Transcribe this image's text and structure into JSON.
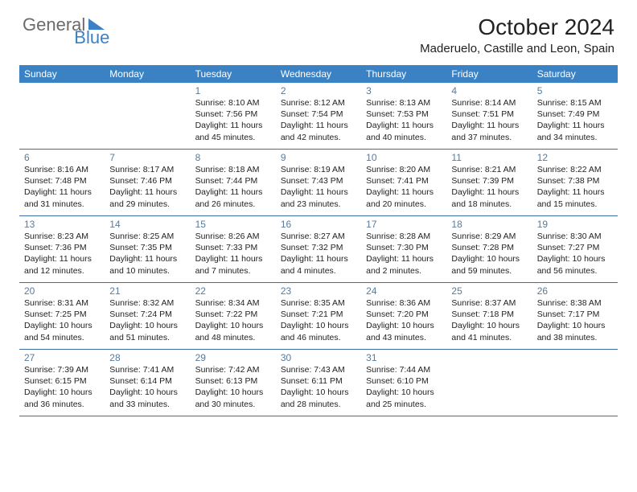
{
  "logo": {
    "general": "General",
    "blue": "Blue"
  },
  "title": "October 2024",
  "location": "Maderuelo, Castille and Leon, Spain",
  "colors": {
    "header_bg": "#3b82c4",
    "daynum": "#5a7a9a",
    "row_border": "#3b6ea0"
  },
  "daysOfWeek": [
    "Sunday",
    "Monday",
    "Tuesday",
    "Wednesday",
    "Thursday",
    "Friday",
    "Saturday"
  ],
  "weeks": [
    [
      null,
      null,
      {
        "n": "1",
        "sr": "8:10 AM",
        "ss": "7:56 PM",
        "dl": "11 hours and 45 minutes."
      },
      {
        "n": "2",
        "sr": "8:12 AM",
        "ss": "7:54 PM",
        "dl": "11 hours and 42 minutes."
      },
      {
        "n": "3",
        "sr": "8:13 AM",
        "ss": "7:53 PM",
        "dl": "11 hours and 40 minutes."
      },
      {
        "n": "4",
        "sr": "8:14 AM",
        "ss": "7:51 PM",
        "dl": "11 hours and 37 minutes."
      },
      {
        "n": "5",
        "sr": "8:15 AM",
        "ss": "7:49 PM",
        "dl": "11 hours and 34 minutes."
      }
    ],
    [
      {
        "n": "6",
        "sr": "8:16 AM",
        "ss": "7:48 PM",
        "dl": "11 hours and 31 minutes."
      },
      {
        "n": "7",
        "sr": "8:17 AM",
        "ss": "7:46 PM",
        "dl": "11 hours and 29 minutes."
      },
      {
        "n": "8",
        "sr": "8:18 AM",
        "ss": "7:44 PM",
        "dl": "11 hours and 26 minutes."
      },
      {
        "n": "9",
        "sr": "8:19 AM",
        "ss": "7:43 PM",
        "dl": "11 hours and 23 minutes."
      },
      {
        "n": "10",
        "sr": "8:20 AM",
        "ss": "7:41 PM",
        "dl": "11 hours and 20 minutes."
      },
      {
        "n": "11",
        "sr": "8:21 AM",
        "ss": "7:39 PM",
        "dl": "11 hours and 18 minutes."
      },
      {
        "n": "12",
        "sr": "8:22 AM",
        "ss": "7:38 PM",
        "dl": "11 hours and 15 minutes."
      }
    ],
    [
      {
        "n": "13",
        "sr": "8:23 AM",
        "ss": "7:36 PM",
        "dl": "11 hours and 12 minutes."
      },
      {
        "n": "14",
        "sr": "8:25 AM",
        "ss": "7:35 PM",
        "dl": "11 hours and 10 minutes."
      },
      {
        "n": "15",
        "sr": "8:26 AM",
        "ss": "7:33 PM",
        "dl": "11 hours and 7 minutes."
      },
      {
        "n": "16",
        "sr": "8:27 AM",
        "ss": "7:32 PM",
        "dl": "11 hours and 4 minutes."
      },
      {
        "n": "17",
        "sr": "8:28 AM",
        "ss": "7:30 PM",
        "dl": "11 hours and 2 minutes."
      },
      {
        "n": "18",
        "sr": "8:29 AM",
        "ss": "7:28 PM",
        "dl": "10 hours and 59 minutes."
      },
      {
        "n": "19",
        "sr": "8:30 AM",
        "ss": "7:27 PM",
        "dl": "10 hours and 56 minutes."
      }
    ],
    [
      {
        "n": "20",
        "sr": "8:31 AM",
        "ss": "7:25 PM",
        "dl": "10 hours and 54 minutes."
      },
      {
        "n": "21",
        "sr": "8:32 AM",
        "ss": "7:24 PM",
        "dl": "10 hours and 51 minutes."
      },
      {
        "n": "22",
        "sr": "8:34 AM",
        "ss": "7:22 PM",
        "dl": "10 hours and 48 minutes."
      },
      {
        "n": "23",
        "sr": "8:35 AM",
        "ss": "7:21 PM",
        "dl": "10 hours and 46 minutes."
      },
      {
        "n": "24",
        "sr": "8:36 AM",
        "ss": "7:20 PM",
        "dl": "10 hours and 43 minutes."
      },
      {
        "n": "25",
        "sr": "8:37 AM",
        "ss": "7:18 PM",
        "dl": "10 hours and 41 minutes."
      },
      {
        "n": "26",
        "sr": "8:38 AM",
        "ss": "7:17 PM",
        "dl": "10 hours and 38 minutes."
      }
    ],
    [
      {
        "n": "27",
        "sr": "7:39 AM",
        "ss": "6:15 PM",
        "dl": "10 hours and 36 minutes."
      },
      {
        "n": "28",
        "sr": "7:41 AM",
        "ss": "6:14 PM",
        "dl": "10 hours and 33 minutes."
      },
      {
        "n": "29",
        "sr": "7:42 AM",
        "ss": "6:13 PM",
        "dl": "10 hours and 30 minutes."
      },
      {
        "n": "30",
        "sr": "7:43 AM",
        "ss": "6:11 PM",
        "dl": "10 hours and 28 minutes."
      },
      {
        "n": "31",
        "sr": "7:44 AM",
        "ss": "6:10 PM",
        "dl": "10 hours and 25 minutes."
      },
      null,
      null
    ]
  ]
}
